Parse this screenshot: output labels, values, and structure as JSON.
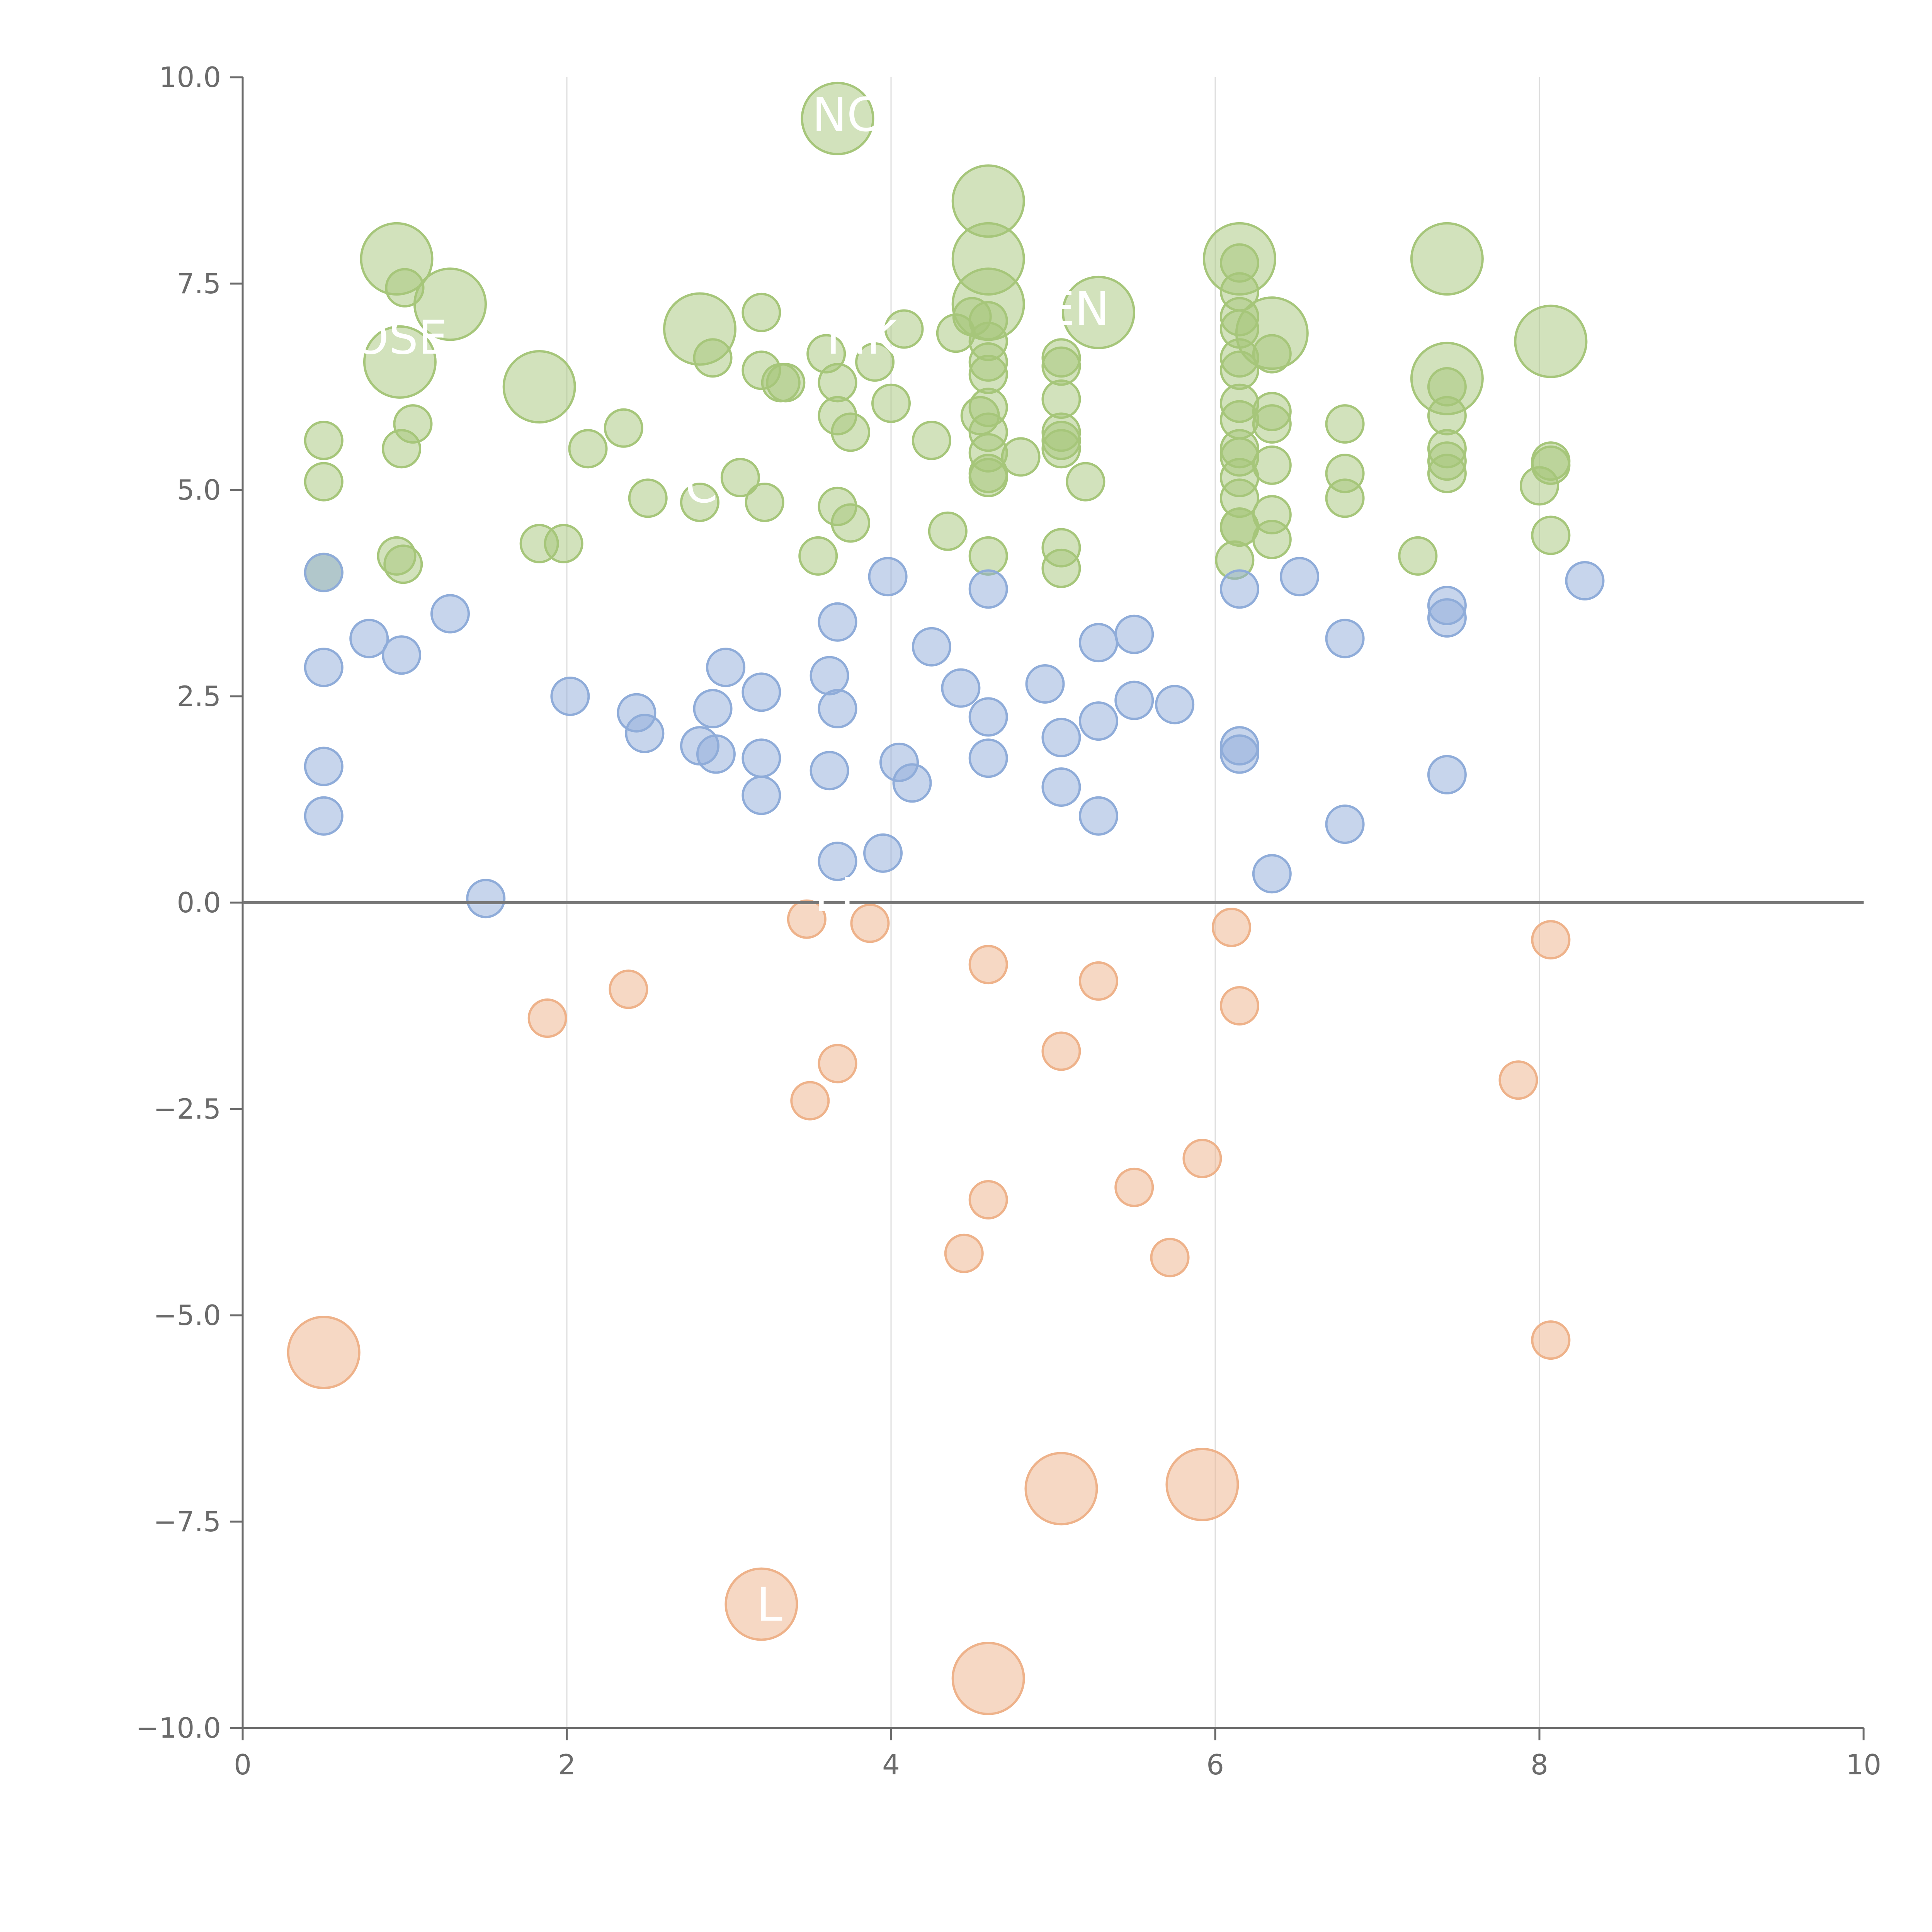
{
  "chart_data": {
    "type": "scatter",
    "title": "",
    "xlabel": "",
    "ylabel": "",
    "xlim": [
      0,
      10
    ],
    "ylim": [
      -10,
      10
    ],
    "x_ticks": [
      0,
      2,
      4,
      6,
      8,
      10
    ],
    "y_ticks": [
      -10.0,
      -7.5,
      -5.0,
      -2.5,
      0.0,
      2.5,
      5.0,
      7.5,
      10.0
    ],
    "x_tick_labels": [
      "0",
      "2",
      "4",
      "6",
      "8",
      "10"
    ],
    "y_tick_labels": [
      "−10.0",
      "−7.5",
      "−5.0",
      "−2.5",
      "0.0",
      "2.5",
      "5.0",
      "7.5",
      "10.0"
    ],
    "vertical_gridlines": [
      2,
      4,
      6,
      8
    ],
    "zero_line": 0,
    "colors": {
      "green": "#a6c67a",
      "blue": "#8facd9",
      "orange": "#eeb28a",
      "axis": "#6b6b6b",
      "grid": "#dddddd",
      "zero": "#777777"
    },
    "series": [
      {
        "color_key": "green",
        "points": [
          [
            0.5,
            5.6
          ],
          [
            0.5,
            5.1
          ],
          [
            0.5,
            4.0
          ],
          [
            0.95,
            4.2
          ],
          [
            0.99,
            4.1
          ],
          [
            0.98,
            5.5
          ],
          [
            1.05,
            5.8
          ],
          [
            1.0,
            7.45
          ],
          [
            1.83,
            4.35
          ],
          [
            1.98,
            4.35
          ],
          [
            2.13,
            5.5
          ],
          [
            2.35,
            5.75
          ],
          [
            2.5,
            4.9
          ],
          [
            2.82,
            4.85
          ],
          [
            2.9,
            6.6
          ],
          [
            3.07,
            5.15
          ],
          [
            3.2,
            6.45
          ],
          [
            3.2,
            7.15
          ],
          [
            3.22,
            4.85
          ],
          [
            3.32,
            6.3
          ],
          [
            3.35,
            6.3
          ],
          [
            3.55,
            4.2
          ],
          [
            3.6,
            6.65
          ],
          [
            3.67,
            6.3
          ],
          [
            3.67,
            5.9
          ],
          [
            3.67,
            4.8
          ],
          [
            3.75,
            4.6
          ],
          [
            3.75,
            5.7
          ],
          [
            3.9,
            6.55
          ],
          [
            4.0,
            6.05
          ],
          [
            4.08,
            6.95
          ],
          [
            4.25,
            5.6
          ],
          [
            4.35,
            4.5
          ],
          [
            4.4,
            6.9
          ],
          [
            4.5,
            7.1
          ],
          [
            4.55,
            5.9
          ],
          [
            4.6,
            7.05
          ],
          [
            4.6,
            6.8
          ],
          [
            4.6,
            6.55
          ],
          [
            4.6,
            6.4
          ],
          [
            4.6,
            6.0
          ],
          [
            4.6,
            5.7
          ],
          [
            4.6,
            5.45
          ],
          [
            4.6,
            5.15
          ],
          [
            4.6,
            5.2
          ],
          [
            4.6,
            4.2
          ],
          [
            4.8,
            5.4
          ],
          [
            5.05,
            6.6
          ],
          [
            5.05,
            6.5
          ],
          [
            5.05,
            6.1
          ],
          [
            5.05,
            5.7
          ],
          [
            5.05,
            5.6
          ],
          [
            5.05,
            5.5
          ],
          [
            5.05,
            4.3
          ],
          [
            5.05,
            4.05
          ],
          [
            5.2,
            5.1
          ],
          [
            6.12,
            4.15
          ],
          [
            6.15,
            7.75
          ],
          [
            6.15,
            7.4
          ],
          [
            6.15,
            7.1
          ],
          [
            6.15,
            6.95
          ],
          [
            6.15,
            6.6
          ],
          [
            6.15,
            6.45
          ],
          [
            6.15,
            6.05
          ],
          [
            6.15,
            5.85
          ],
          [
            6.15,
            5.5
          ],
          [
            6.15,
            5.4
          ],
          [
            6.15,
            5.15
          ],
          [
            6.15,
            4.9
          ],
          [
            6.15,
            4.55
          ],
          [
            6.15,
            4.55
          ],
          [
            6.35,
            6.65
          ],
          [
            6.35,
            5.95
          ],
          [
            6.35,
            5.8
          ],
          [
            6.35,
            5.3
          ],
          [
            6.35,
            4.7
          ],
          [
            6.35,
            4.4
          ],
          [
            6.8,
            5.8
          ],
          [
            6.8,
            5.2
          ],
          [
            6.8,
            4.9
          ],
          [
            7.25,
            4.2
          ],
          [
            7.43,
            6.25
          ],
          [
            7.43,
            5.9
          ],
          [
            7.43,
            5.5
          ],
          [
            7.43,
            5.35
          ],
          [
            7.43,
            5.2
          ],
          [
            8.0,
            5.05
          ],
          [
            8.07,
            5.35
          ],
          [
            8.07,
            5.3
          ],
          [
            8.07,
            4.45
          ]
        ],
        "bubbles": [
          [
            0.95,
            7.8
          ],
          [
            0.97,
            6.55
          ],
          [
            1.28,
            7.25
          ],
          [
            1.83,
            6.25
          ],
          [
            2.82,
            6.95
          ],
          [
            3.67,
            9.5
          ],
          [
            4.6,
            8.5
          ],
          [
            4.6,
            7.8
          ],
          [
            4.6,
            7.25
          ],
          [
            5.28,
            7.15
          ],
          [
            6.15,
            7.8
          ],
          [
            6.35,
            6.9
          ],
          [
            7.43,
            7.8
          ],
          [
            7.43,
            6.35
          ],
          [
            8.07,
            6.8
          ]
        ]
      },
      {
        "color_key": "blue",
        "points": [
          [
            0.5,
            4.0
          ],
          [
            0.5,
            2.85
          ],
          [
            0.5,
            1.65
          ],
          [
            0.5,
            1.05
          ],
          [
            0.78,
            3.2
          ],
          [
            0.98,
            3.0
          ],
          [
            1.28,
            3.5
          ],
          [
            1.5,
            0.05
          ],
          [
            2.02,
            2.5
          ],
          [
            2.43,
            2.3
          ],
          [
            2.48,
            2.05
          ],
          [
            2.82,
            1.9
          ],
          [
            2.9,
            2.35
          ],
          [
            2.92,
            1.8
          ],
          [
            2.98,
            2.85
          ],
          [
            3.2,
            2.55
          ],
          [
            3.2,
            1.75
          ],
          [
            3.2,
            1.3
          ],
          [
            3.62,
            2.75
          ],
          [
            3.62,
            1.6
          ],
          [
            3.67,
            3.4
          ],
          [
            3.67,
            2.35
          ],
          [
            3.67,
            0.5
          ],
          [
            3.95,
            0.6
          ],
          [
            3.98,
            3.95
          ],
          [
            4.05,
            1.7
          ],
          [
            4.13,
            1.45
          ],
          [
            4.25,
            3.1
          ],
          [
            4.43,
            2.6
          ],
          [
            4.6,
            3.8
          ],
          [
            4.6,
            2.25
          ],
          [
            4.6,
            1.75
          ],
          [
            4.95,
            2.65
          ],
          [
            5.05,
            2.0
          ],
          [
            5.05,
            1.4
          ],
          [
            5.28,
            3.15
          ],
          [
            5.28,
            2.2
          ],
          [
            5.28,
            1.05
          ],
          [
            5.5,
            3.25
          ],
          [
            5.5,
            2.45
          ],
          [
            5.75,
            2.4
          ],
          [
            6.15,
            3.8
          ],
          [
            6.15,
            1.9
          ],
          [
            6.15,
            1.8
          ],
          [
            6.35,
            0.35
          ],
          [
            6.52,
            3.95
          ],
          [
            6.8,
            3.2
          ],
          [
            6.8,
            0.95
          ],
          [
            7.43,
            3.6
          ],
          [
            7.43,
            3.45
          ],
          [
            7.43,
            1.55
          ],
          [
            8.28,
            3.9
          ]
        ],
        "bubbles": []
      },
      {
        "color_key": "orange",
        "points": [
          [
            1.88,
            -1.4
          ],
          [
            2.38,
            -1.05
          ],
          [
            3.48,
            -0.2
          ],
          [
            3.5,
            -2.4
          ],
          [
            3.67,
            -1.95
          ],
          [
            3.87,
            -0.25
          ],
          [
            4.45,
            -4.25
          ],
          [
            4.6,
            -0.75
          ],
          [
            4.6,
            -3.6
          ],
          [
            5.05,
            -1.8
          ],
          [
            5.28,
            -0.95
          ],
          [
            5.5,
            -3.45
          ],
          [
            5.72,
            -4.3
          ],
          [
            5.92,
            -3.1
          ],
          [
            6.1,
            -0.3
          ],
          [
            6.15,
            -1.25
          ],
          [
            7.87,
            -2.15
          ],
          [
            8.07,
            -0.45
          ],
          [
            8.07,
            -5.3
          ]
        ],
        "bubbles": [
          [
            0.5,
            -5.45
          ],
          [
            3.2,
            -8.5
          ],
          [
            4.6,
            -9.4
          ],
          [
            5.05,
            -7.1
          ],
          [
            5.92,
            -7.05
          ]
        ]
      }
    ],
    "labels": [
      {
        "text": "OSE",
        "x": 0.97,
        "y": 6.65
      },
      {
        "text": "NC",
        "x": 3.72,
        "y": 9.35
      },
      {
        "text": "MK",
        "x": 3.82,
        "y": 6.65
      },
      {
        "text": "EN",
        "x": 5.15,
        "y": 7.0
      },
      {
        "text": "TC",
        "x": 2.75,
        "y": 4.85
      },
      {
        "text": "LI",
        "x": 3.65,
        "y": -0.1
      },
      {
        "text": "L",
        "x": 3.25,
        "y": -8.7
      }
    ]
  }
}
